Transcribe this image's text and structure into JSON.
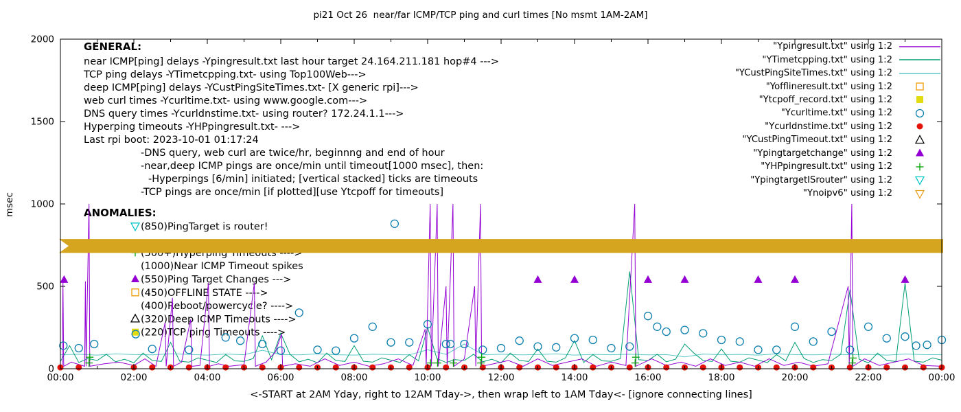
{
  "title": "pi21 Oct 26  near/far ICMP/TCP ping and curl times [No msmt 1AM-2AM]",
  "ylabel": "msec",
  "xlabel": "<-START at 2AM Yday, right to 12AM Tday->, then wrap left to 1AM Tday<- [ignore connecting lines]",
  "general": {
    "header": "GENERAL:",
    "lines": [
      {
        "text": "near ICMP[ping] delays -Ypingresult.txt last hour target 24.164.211.181 hop#4 --->",
        "indent": 0
      },
      {
        "text": "TCP ping delays -YTimetcpping.txt- using Top100Web--->",
        "indent": 0
      },
      {
        "text": "deep ICMP[ping] delays -YCustPingSiteTimes.txt- [X generic rpi]--->",
        "indent": 0
      },
      {
        "text": "web curl times -Ycurltime.txt- using www.google.com--->",
        "indent": 0
      },
      {
        "text": "DNS query times -Ycurldnstime.txt- using router? 172.24.1.1--->",
        "indent": 0
      },
      {
        "text": "Hyperping timeouts -YHPpingresult.txt- --->",
        "indent": 0
      },
      {
        "text": "Last rpi boot: 2023-10-01 01:17:24",
        "indent": 0
      },
      {
        "text": "-DNS query, web curl are twice/hr, beginnng and end of hour",
        "indent": 1
      },
      {
        "text": "-near,deep ICMP pings are once/min until timeout[1000 msec], then:",
        "indent": 1
      },
      {
        "text": "-Hyperpings [6/min] initiated; [vertical stacked] ticks are timeouts",
        "indent": 2
      },
      {
        "text": "-TCP pings are once/min [if plotted][use Ytcpoff for timeouts]",
        "indent": 1
      }
    ]
  },
  "anomalies": {
    "header": "ANOMALIES:",
    "rows": [
      {
        "slot": 1,
        "marker": "triangle-down-open",
        "color": "#00c5c5",
        "text": "(850)PingTarget is router!"
      },
      {
        "slot": 3,
        "marker": "plus",
        "color": "#00a000",
        "text": "(500+)Hyperping Timeouts ---->"
      },
      {
        "slot": 4,
        "marker": null,
        "color": null,
        "text": "(1000)Near ICMP Timeout spikes"
      },
      {
        "slot": 5,
        "marker": "triangle-filled",
        "color": "#9400d3",
        "text": "(550)Ping Target Changes --->"
      },
      {
        "slot": 6,
        "marker": "square-open",
        "color": "#ef9b00",
        "text": "(450)OFFLINE STATE ---->"
      },
      {
        "slot": 7,
        "marker": null,
        "color": null,
        "text": "(400)Reboot/powercycle? ---->"
      },
      {
        "slot": 8,
        "marker": "triangle-open",
        "color": "#000000",
        "text": "(320)Deep ICMP Timeouts ---->"
      },
      {
        "slot": 9,
        "marker": "square-filled",
        "color": "#e3dc13",
        "text": "(220)TCP ping Timeouts ---->"
      }
    ]
  },
  "legend": [
    {
      "label": "\"Ypingresult.txt\" using 1:2",
      "marker": "line",
      "color": "#9400d3"
    },
    {
      "label": "\"YTimetcpping.txt\" using 1:2",
      "marker": "line",
      "color": "#009e73"
    },
    {
      "label": "\"YCustPingSiteTimes.txt\" using 1:2",
      "marker": "line",
      "color": "#5cc8c8"
    },
    {
      "label": "\"Yofflineresult.txt\" using 1:2",
      "marker": "square-open",
      "color": "#ef9b00"
    },
    {
      "label": "\"Ytcpoff_record.txt\" using 1:2",
      "marker": "square-filled",
      "color": "#e3dc13"
    },
    {
      "label": "\"Ycurltime.txt\" using 1:2",
      "marker": "circle-open",
      "color": "#0c7faf"
    },
    {
      "label": "\"Ycurldnstime.txt\" using 1:2",
      "marker": "circle-filled",
      "color": "#e3120b"
    },
    {
      "label": "\"YCustPingTimeout.txt\" using 1:2",
      "marker": "triangle-open",
      "color": "#000000"
    },
    {
      "label": "\"Ypingtargetchange\" using 1:2",
      "marker": "triangle-filled",
      "color": "#9400d3"
    },
    {
      "label": "\"YHPpingresult.txt\" using 1:2",
      "marker": "plus",
      "color": "#00a000"
    },
    {
      "label": "\"YpingtargetISrouter\" using 1:2",
      "marker": "triangle-down-open",
      "color": "#00c5c5"
    },
    {
      "label": "\"Ynoipv6\" using 1:2",
      "marker": "triangle-down-open",
      "color": "#e8a020"
    }
  ],
  "chart_data": {
    "type": "line",
    "x_range": [
      0,
      24
    ],
    "y_range": [
      0,
      2000
    ],
    "y_ticks": [
      0,
      500,
      1000,
      1500,
      2000
    ],
    "x_tick_labels": [
      "00:00",
      "02:00",
      "04:00",
      "06:00",
      "08:00",
      "10:00",
      "12:00",
      "14:00",
      "16:00",
      "18:00",
      "20:00",
      "22:00",
      "00:00"
    ],
    "series": {
      "deep_ping_sites": {
        "style": "line",
        "color": "#5cc8c8",
        "x_start": 0,
        "x_step": 0.5,
        "values": [
          85,
          88,
          83,
          90,
          86,
          84,
          91,
          87,
          83,
          89,
          85,
          112,
          86,
          84,
          90,
          85,
          83,
          88,
          86,
          84,
          115,
          87,
          150,
          85,
          88,
          84,
          86,
          90,
          83,
          87,
          85,
          88,
          84,
          86,
          72,
          89,
          85,
          87,
          83,
          90,
          86,
          84,
          88,
          85,
          87,
          83,
          89,
          86,
          85
        ]
      },
      "tcp_ping": {
        "style": "line",
        "color": "#009e73",
        "x_start": 0,
        "x_step": 0.25,
        "values": [
          45,
          140,
          38,
          62,
          50,
          88,
          42,
          58,
          36,
          95,
          50,
          44,
          160,
          46,
          40,
          66,
          52,
          38,
          86,
          48,
          45,
          62,
          200,
          55,
          215,
          88,
          42,
          58,
          36,
          95,
          50,
          44,
          140,
          46,
          40,
          66,
          52,
          38,
          86,
          48,
          250,
          62,
          38,
          55,
          50,
          88,
          42,
          58,
          36,
          95,
          50,
          44,
          120,
          46,
          40,
          66,
          170,
          38,
          86,
          48,
          45,
          62,
          590,
          55,
          50,
          88,
          42,
          58,
          150,
          95,
          50,
          44,
          120,
          46,
          40,
          66,
          52,
          38,
          86,
          48,
          160,
          62,
          38,
          55,
          50,
          88,
          480,
          58,
          36,
          95,
          50,
          44,
          520,
          46,
          40,
          66,
          52
        ]
      },
      "near_icmp_ping": {
        "style": "line",
        "color": "#9400d3",
        "points": [
          [
            0,
            15
          ],
          [
            0.05,
            15
          ],
          [
            0.07,
            540
          ],
          [
            0.09,
            15
          ],
          [
            0.3,
            40
          ],
          [
            0.66,
            15
          ],
          [
            0.68,
            530
          ],
          [
            0.7,
            15
          ],
          [
            0.78,
            1000
          ],
          [
            0.8,
            15
          ],
          [
            1.2,
            30
          ],
          [
            1.6,
            40
          ],
          [
            2,
            20
          ],
          [
            2.3,
            60
          ],
          [
            2.6,
            15
          ],
          [
            2.85,
            280
          ],
          [
            2.88,
            15
          ],
          [
            3.05,
            430
          ],
          [
            3.08,
            15
          ],
          [
            3.3,
            40
          ],
          [
            3.55,
            300
          ],
          [
            3.58,
            15
          ],
          [
            3.8,
            20
          ],
          [
            4.03,
            520
          ],
          [
            4.06,
            15
          ],
          [
            4.3,
            30
          ],
          [
            4.6,
            15
          ],
          [
            5,
            25
          ],
          [
            5.28,
            520
          ],
          [
            5.31,
            15
          ],
          [
            5.6,
            40
          ],
          [
            5.85,
            100
          ],
          [
            6.02,
            210
          ],
          [
            6.05,
            15
          ],
          [
            6.4,
            30
          ],
          [
            6.8,
            15
          ],
          [
            7.2,
            60
          ],
          [
            7.6,
            20
          ],
          [
            8,
            40
          ],
          [
            8.4,
            15
          ],
          [
            8.8,
            30
          ],
          [
            9.2,
            60
          ],
          [
            9.6,
            20
          ],
          [
            9.93,
            240
          ],
          [
            9.96,
            15
          ],
          [
            10.07,
            1000
          ],
          [
            10.1,
            15
          ],
          [
            10.26,
            1000
          ],
          [
            10.29,
            15
          ],
          [
            10.5,
            500
          ],
          [
            10.53,
            15
          ],
          [
            10.69,
            1000
          ],
          [
            10.72,
            15
          ],
          [
            11,
            60
          ],
          [
            11.28,
            500
          ],
          [
            11.31,
            15
          ],
          [
            11.44,
            1000
          ],
          [
            11.47,
            15
          ],
          [
            11.8,
            30
          ],
          [
            12.2,
            50
          ],
          [
            12.6,
            15
          ],
          [
            13,
            60
          ],
          [
            13.4,
            20
          ],
          [
            13.8,
            40
          ],
          [
            14.2,
            60
          ],
          [
            14.6,
            15
          ],
          [
            15,
            40
          ],
          [
            15.4,
            20
          ],
          [
            15.64,
            1000
          ],
          [
            15.67,
            15
          ],
          [
            16.1,
            60
          ],
          [
            16.5,
            20
          ],
          [
            16.9,
            40
          ],
          [
            17.3,
            15
          ],
          [
            17.7,
            60
          ],
          [
            18.1,
            20
          ],
          [
            18.5,
            40
          ],
          [
            18.9,
            15
          ],
          [
            19.3,
            60
          ],
          [
            19.7,
            20
          ],
          [
            20.1,
            40
          ],
          [
            20.5,
            15
          ],
          [
            20.9,
            30
          ],
          [
            21.45,
            500
          ],
          [
            21.48,
            15
          ],
          [
            21.55,
            1000
          ],
          [
            21.58,
            15
          ],
          [
            21.9,
            60
          ],
          [
            22.3,
            20
          ],
          [
            22.7,
            40
          ],
          [
            23.1,
            60
          ],
          [
            23.5,
            20
          ],
          [
            24,
            15
          ]
        ]
      },
      "web_curl": {
        "style": "circle-open",
        "color": "#0c7faf",
        "points": [
          [
            0.08,
            140
          ],
          [
            0.5,
            125
          ],
          [
            0.92,
            150
          ],
          [
            2.05,
            210
          ],
          [
            2.5,
            120
          ],
          [
            3.5,
            115
          ],
          [
            4.5,
            190
          ],
          [
            4.9,
            170
          ],
          [
            5.5,
            150
          ],
          [
            6,
            110
          ],
          [
            6.5,
            340
          ],
          [
            7,
            115
          ],
          [
            7.5,
            110
          ],
          [
            8,
            185
          ],
          [
            8.5,
            255
          ],
          [
            9,
            160
          ],
          [
            9.1,
            880
          ],
          [
            9.5,
            160
          ],
          [
            10,
            270
          ],
          [
            10.5,
            150
          ],
          [
            10.62,
            150
          ],
          [
            11,
            150
          ],
          [
            11.5,
            115
          ],
          [
            12,
            125
          ],
          [
            12.5,
            170
          ],
          [
            13,
            135
          ],
          [
            13.5,
            130
          ],
          [
            14,
            185
          ],
          [
            14.5,
            175
          ],
          [
            15,
            125
          ],
          [
            15.5,
            135
          ],
          [
            16,
            320
          ],
          [
            16.25,
            255
          ],
          [
            16.5,
            225
          ],
          [
            17,
            235
          ],
          [
            17.5,
            215
          ],
          [
            18,
            175
          ],
          [
            18.5,
            165
          ],
          [
            19,
            115
          ],
          [
            19.5,
            115
          ],
          [
            20,
            255
          ],
          [
            20.5,
            165
          ],
          [
            21,
            225
          ],
          [
            21.5,
            115
          ],
          [
            22,
            255
          ],
          [
            22.5,
            185
          ],
          [
            23,
            195
          ],
          [
            23.3,
            140
          ],
          [
            23.6,
            145
          ],
          [
            24,
            175
          ]
        ]
      },
      "dns_query": {
        "style": "circle-filled",
        "color": "#e3120b",
        "points": [
          [
            0,
            8
          ],
          [
            0.5,
            8
          ],
          [
            2,
            8
          ],
          [
            2.5,
            8
          ],
          [
            3,
            8
          ],
          [
            3.5,
            8
          ],
          [
            4,
            8
          ],
          [
            4.5,
            8
          ],
          [
            5,
            8
          ],
          [
            5.5,
            8
          ],
          [
            6,
            8
          ],
          [
            6.5,
            8
          ],
          [
            7,
            8
          ],
          [
            7.5,
            8
          ],
          [
            8,
            8
          ],
          [
            8.5,
            8
          ],
          [
            9,
            8
          ],
          [
            9.5,
            8
          ],
          [
            10,
            8
          ],
          [
            10.5,
            8
          ],
          [
            11,
            8
          ],
          [
            11.5,
            8
          ],
          [
            12,
            8
          ],
          [
            12.5,
            8
          ],
          [
            13,
            8
          ],
          [
            13.5,
            8
          ],
          [
            14,
            8
          ],
          [
            14.5,
            8
          ],
          [
            15,
            8
          ],
          [
            15.5,
            8
          ],
          [
            16,
            8
          ],
          [
            16.5,
            8
          ],
          [
            17,
            8
          ],
          [
            17.5,
            8
          ],
          [
            18,
            8
          ],
          [
            18.5,
            8
          ],
          [
            19,
            8
          ],
          [
            19.5,
            8
          ],
          [
            20,
            8
          ],
          [
            20.5,
            8
          ],
          [
            21,
            8
          ],
          [
            21.5,
            8
          ],
          [
            22,
            8
          ],
          [
            22.5,
            8
          ],
          [
            23,
            8
          ],
          [
            23.5,
            8
          ],
          [
            24,
            8
          ]
        ]
      },
      "hyperping": {
        "style": "plus",
        "color": "#00a000",
        "points": [
          [
            0.78,
            35
          ],
          [
            0.8,
            70
          ],
          [
            10.08,
            35
          ],
          [
            10.27,
            35
          ],
          [
            10.7,
            35
          ],
          [
            11.45,
            35
          ],
          [
            11.47,
            70
          ],
          [
            15.65,
            35
          ],
          [
            15.67,
            70
          ],
          [
            21.56,
            35
          ],
          [
            21.58,
            65
          ]
        ]
      },
      "ping_target_change": {
        "style": "triangle-filled",
        "color": "#9400d3",
        "points": [
          [
            0.1,
            540
          ],
          [
            13,
            540
          ],
          [
            14,
            540
          ],
          [
            16,
            540
          ],
          [
            17,
            540
          ],
          [
            19,
            540
          ],
          [
            20,
            540
          ],
          [
            23,
            540
          ]
        ]
      },
      "noipv6_band": {
        "style": "band",
        "color": "#d6a520",
        "y_center": 745,
        "y_half": 42
      }
    }
  }
}
